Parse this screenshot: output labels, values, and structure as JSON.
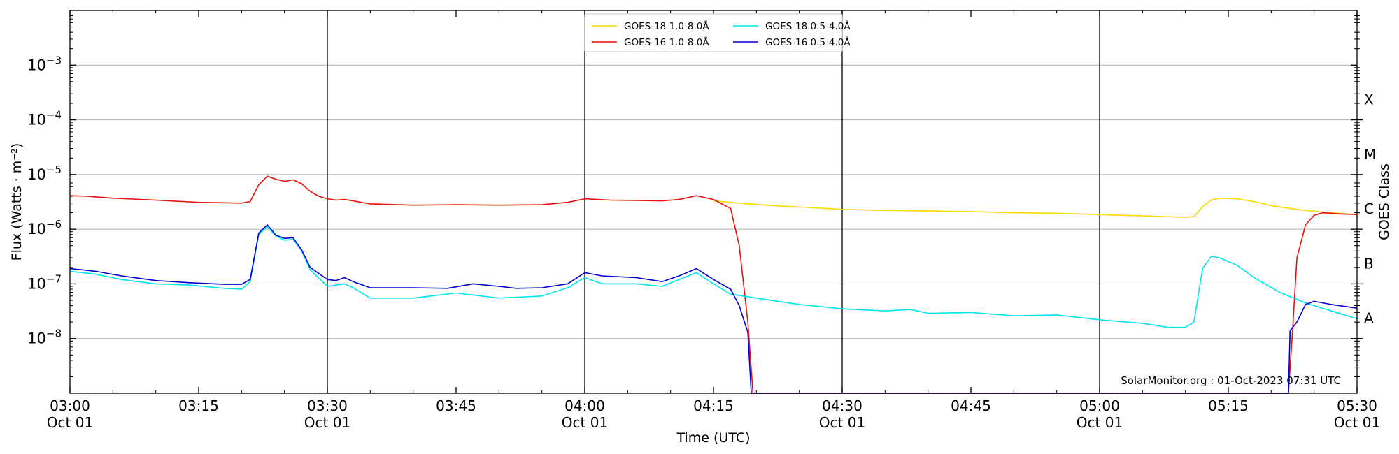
{
  "chart_data": {
    "type": "line",
    "xlabel": "Time (UTC)",
    "ylabel": "Flux (Watts · m⁻²)",
    "right_ylabel": "GOES Class",
    "x_range": [
      "03:00",
      "05:30"
    ],
    "x_ticks": [
      {
        "time": "03:00",
        "label": "03:00",
        "date": "Oct 01"
      },
      {
        "time": "03:15",
        "label": "03:15",
        "date": ""
      },
      {
        "time": "03:30",
        "label": "03:30",
        "date": "Oct 01"
      },
      {
        "time": "03:45",
        "label": "03:45",
        "date": ""
      },
      {
        "time": "04:00",
        "label": "04:00",
        "date": "Oct 01"
      },
      {
        "time": "04:15",
        "label": "04:15",
        "date": ""
      },
      {
        "time": "04:30",
        "label": "04:30",
        "date": "Oct 01"
      },
      {
        "time": "04:45",
        "label": "04:45",
        "date": ""
      },
      {
        "time": "05:00",
        "label": "05:00",
        "date": "Oct 01"
      },
      {
        "time": "05:15",
        "label": "05:15",
        "date": ""
      },
      {
        "time": "05:30",
        "label": "05:30",
        "date": "Oct 01"
      }
    ],
    "y_scale": "log",
    "y_range": [
      1e-09,
      0.01
    ],
    "y_ticks": [
      {
        "value": 1e-08,
        "base": "10",
        "exp": "−8"
      },
      {
        "value": 1e-07,
        "base": "10",
        "exp": "−7"
      },
      {
        "value": 1e-06,
        "base": "10",
        "exp": "−6"
      },
      {
        "value": 1e-05,
        "base": "10",
        "exp": "−5"
      },
      {
        "value": 0.0001,
        "base": "10",
        "exp": "−4"
      },
      {
        "value": 0.001,
        "base": "10",
        "exp": "−3"
      }
    ],
    "goes_classes": [
      {
        "label": "A",
        "value": 1e-08
      },
      {
        "label": "B",
        "value": 1e-07
      },
      {
        "label": "C",
        "value": 1e-06
      },
      {
        "label": "M",
        "value": 1e-05
      },
      {
        "label": "X",
        "value": 0.0001
      }
    ],
    "horizontal_grid": [
      1e-08,
      1e-07,
      1e-06,
      1e-05,
      0.0001,
      0.001
    ],
    "vertical_lines": [
      "03:30",
      "04:00",
      "04:30",
      "05:00"
    ],
    "annotation": "SolarMonitor.org : 01-Oct-2023 07:31 UTC",
    "legend_position": "top-center",
    "series": [
      {
        "name": "GOES-18 1.0-8.0Å",
        "color": "#ffd700",
        "points": [
          [
            "04:15",
            3.3e-06
          ],
          [
            "04:18",
            3e-06
          ],
          [
            "04:22",
            2.7e-06
          ],
          [
            "04:26",
            2.5e-06
          ],
          [
            "04:30",
            2.3e-06
          ],
          [
            "04:35",
            2.2e-06
          ],
          [
            "04:40",
            2.15e-06
          ],
          [
            "04:45",
            2.1e-06
          ],
          [
            "04:50",
            2e-06
          ],
          [
            "04:55",
            1.95e-06
          ],
          [
            "05:00",
            1.85e-06
          ],
          [
            "05:05",
            1.75e-06
          ],
          [
            "05:10",
            1.65e-06
          ],
          [
            "05:11",
            1.7e-06
          ],
          [
            "05:12",
            2.6e-06
          ],
          [
            "05:13",
            3.4e-06
          ],
          [
            "05:14",
            3.7e-06
          ],
          [
            "05:16",
            3.6e-06
          ],
          [
            "05:18",
            3.2e-06
          ],
          [
            "05:20",
            2.7e-06
          ],
          [
            "05:23",
            2.3e-06
          ],
          [
            "05:26",
            2.05e-06
          ],
          [
            "05:30",
            1.85e-06
          ]
        ]
      },
      {
        "name": "GOES-16 1.0-8.0Å",
        "color": "#e8120c",
        "points": [
          [
            "03:00",
            4.1e-06
          ],
          [
            "03:02",
            4e-06
          ],
          [
            "03:05",
            3.7e-06
          ],
          [
            "03:10",
            3.4e-06
          ],
          [
            "03:15",
            3.1e-06
          ],
          [
            "03:20",
            3e-06
          ],
          [
            "03:21",
            3.2e-06
          ],
          [
            "03:22",
            6.5e-06
          ],
          [
            "03:23",
            9.3e-06
          ],
          [
            "03:24",
            8.2e-06
          ],
          [
            "03:25",
            7.5e-06
          ],
          [
            "03:26",
            8e-06
          ],
          [
            "03:27",
            6.8e-06
          ],
          [
            "03:28",
            4.9e-06
          ],
          [
            "03:29",
            4e-06
          ],
          [
            "03:30",
            3.6e-06
          ],
          [
            "03:31",
            3.4e-06
          ],
          [
            "03:32",
            3.5e-06
          ],
          [
            "03:33",
            3.3e-06
          ],
          [
            "03:35",
            2.9e-06
          ],
          [
            "03:40",
            2.75e-06
          ],
          [
            "03:45",
            2.8e-06
          ],
          [
            "03:50",
            2.75e-06
          ],
          [
            "03:55",
            2.8e-06
          ],
          [
            "03:58",
            3.1e-06
          ],
          [
            "04:00",
            3.6e-06
          ],
          [
            "04:03",
            3.4e-06
          ],
          [
            "04:06",
            3.35e-06
          ],
          [
            "04:09",
            3.3e-06
          ],
          [
            "04:11",
            3.5e-06
          ],
          [
            "04:13",
            4.1e-06
          ],
          [
            "04:15",
            3.5e-06
          ],
          [
            "04:17",
            2.4e-06
          ],
          [
            "04:18",
            5e-07
          ],
          [
            "04:19",
            2e-08
          ],
          [
            "04:19.6",
            1e-09
          ],
          [
            "05:22",
            1e-09
          ],
          [
            "05:22.5",
            1.5e-08
          ],
          [
            "05:23",
            3e-07
          ],
          [
            "05:24",
            1.2e-06
          ],
          [
            "05:25",
            1.8e-06
          ],
          [
            "05:26",
            2e-06
          ],
          [
            "05:28",
            1.9e-06
          ],
          [
            "05:30",
            1.85e-06
          ]
        ]
      },
      {
        "name": "GOES-18 0.5-4.0Å",
        "color": "#00e5ee",
        "points": [
          [
            "03:00",
            1.7e-07
          ],
          [
            "03:03",
            1.5e-07
          ],
          [
            "03:06",
            1.2e-07
          ],
          [
            "03:10",
            1e-07
          ],
          [
            "03:14",
            9.5e-08
          ],
          [
            "03:18",
            8.3e-08
          ],
          [
            "03:20",
            8e-08
          ],
          [
            "03:21",
            1.1e-07
          ],
          [
            "03:22",
            8e-07
          ],
          [
            "03:23",
            1.1e-06
          ],
          [
            "03:24",
            7.5e-07
          ],
          [
            "03:25",
            6.3e-07
          ],
          [
            "03:26",
            6.5e-07
          ],
          [
            "03:27",
            4e-07
          ],
          [
            "03:28",
            1.8e-07
          ],
          [
            "03:30",
            9e-08
          ],
          [
            "03:32",
            1e-07
          ],
          [
            "03:33",
            8.5e-08
          ],
          [
            "03:35",
            5.5e-08
          ],
          [
            "03:40",
            5.5e-08
          ],
          [
            "03:45",
            6.8e-08
          ],
          [
            "03:50",
            5.5e-08
          ],
          [
            "03:55",
            6e-08
          ],
          [
            "03:58",
            8.5e-08
          ],
          [
            "04:00",
            1.3e-07
          ],
          [
            "04:02",
            1e-07
          ],
          [
            "04:06",
            1e-07
          ],
          [
            "04:09",
            9e-08
          ],
          [
            "04:11",
            1.2e-07
          ],
          [
            "04:13",
            1.6e-07
          ],
          [
            "04:15",
            1e-07
          ],
          [
            "04:17",
            6.5e-08
          ],
          [
            "04:20",
            5.5e-08
          ],
          [
            "04:25",
            4.2e-08
          ],
          [
            "04:30",
            3.5e-08
          ],
          [
            "04:35",
            3.2e-08
          ],
          [
            "04:38",
            3.4e-08
          ],
          [
            "04:40",
            2.9e-08
          ],
          [
            "04:45",
            3e-08
          ],
          [
            "04:50",
            2.6e-08
          ],
          [
            "04:55",
            2.7e-08
          ],
          [
            "05:00",
            2.2e-08
          ],
          [
            "05:05",
            1.9e-08
          ],
          [
            "05:08",
            1.6e-08
          ],
          [
            "05:10",
            1.6e-08
          ],
          [
            "05:11",
            2e-08
          ],
          [
            "05:12",
            1.9e-07
          ],
          [
            "05:13",
            3.2e-07
          ],
          [
            "05:14",
            3e-07
          ],
          [
            "05:16",
            2.2e-07
          ],
          [
            "05:18",
            1.3e-07
          ],
          [
            "05:21",
            7e-08
          ],
          [
            "05:24",
            4.5e-08
          ],
          [
            "05:27",
            3.2e-08
          ],
          [
            "05:30",
            2.3e-08
          ]
        ]
      },
      {
        "name": "GOES-16 0.5-4.0Å",
        "color": "#0000d0",
        "points": [
          [
            "03:00",
            1.9e-07
          ],
          [
            "03:03",
            1.7e-07
          ],
          [
            "03:06",
            1.4e-07
          ],
          [
            "03:10",
            1.15e-07
          ],
          [
            "03:14",
            1.05e-07
          ],
          [
            "03:18",
            9.8e-08
          ],
          [
            "03:20",
            9.8e-08
          ],
          [
            "03:21",
            1.2e-07
          ],
          [
            "03:22",
            8.5e-07
          ],
          [
            "03:23",
            1.2e-06
          ],
          [
            "03:24",
            7.8e-07
          ],
          [
            "03:25",
            6.8e-07
          ],
          [
            "03:26",
            7e-07
          ],
          [
            "03:27",
            4.2e-07
          ],
          [
            "03:28",
            2e-07
          ],
          [
            "03:30",
            1.2e-07
          ],
          [
            "03:31",
            1.15e-07
          ],
          [
            "03:32",
            1.3e-07
          ],
          [
            "03:33",
            1.1e-07
          ],
          [
            "03:35",
            8.5e-08
          ],
          [
            "03:40",
            8.5e-08
          ],
          [
            "03:44",
            8.3e-08
          ],
          [
            "03:47",
            1e-07
          ],
          [
            "03:50",
            9e-08
          ],
          [
            "03:52",
            8.3e-08
          ],
          [
            "03:55",
            8.5e-08
          ],
          [
            "03:58",
            1e-07
          ],
          [
            "04:00",
            1.6e-07
          ],
          [
            "04:02",
            1.4e-07
          ],
          [
            "04:06",
            1.3e-07
          ],
          [
            "04:09",
            1.1e-07
          ],
          [
            "04:11",
            1.4e-07
          ],
          [
            "04:13",
            1.9e-07
          ],
          [
            "04:15",
            1.2e-07
          ],
          [
            "04:17",
            8e-08
          ],
          [
            "04:18",
            4e-08
          ],
          [
            "04:19",
            1.3e-08
          ],
          [
            "04:19.4",
            1e-09
          ],
          [
            "05:22",
            1e-09
          ],
          [
            "05:22.2",
            1.4e-08
          ],
          [
            "05:23",
            2e-08
          ],
          [
            "05:24",
            4.2e-08
          ],
          [
            "05:25",
            4.8e-08
          ],
          [
            "05:27",
            4.2e-08
          ],
          [
            "05:30",
            3.6e-08
          ]
        ]
      }
    ]
  }
}
